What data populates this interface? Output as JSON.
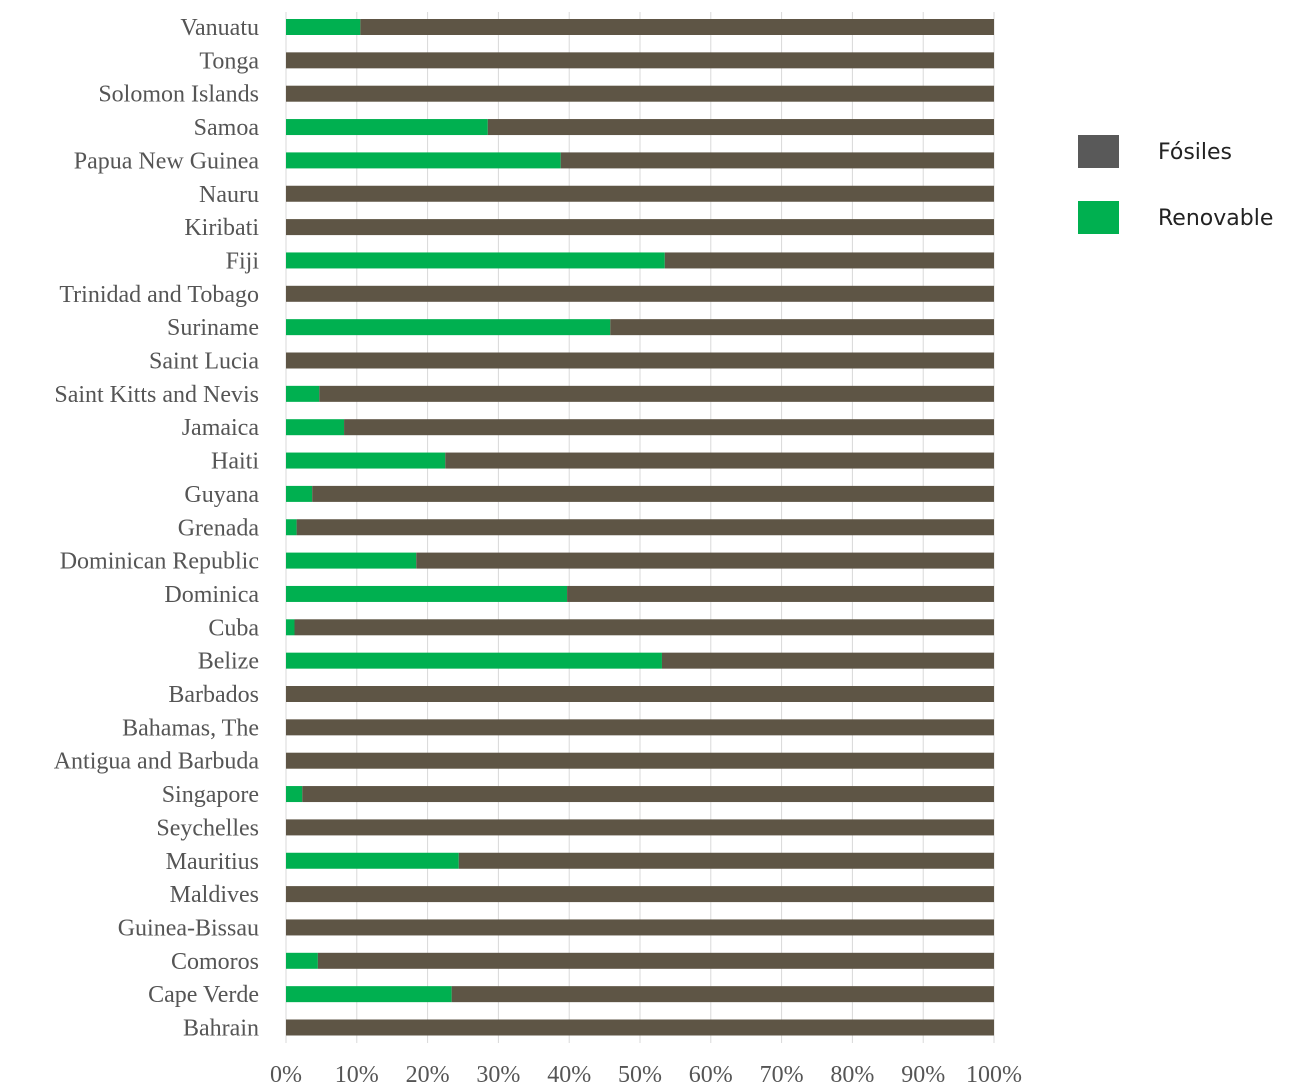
{
  "chart_data": {
    "type": "bar",
    "orientation": "horizontal",
    "stacked": true,
    "normalized": true,
    "categories": [
      "Vanuatu",
      "Tonga",
      "Solomon Islands",
      "Samoa",
      "Papua New Guinea",
      "Nauru",
      "Kiribati",
      "Fiji",
      "Trinidad and Tobago",
      "Suriname",
      "Saint Lucia",
      "Saint Kitts and Nevis",
      "Jamaica",
      "Haiti",
      "Guyana",
      "Grenada",
      "Dominican Republic",
      "Dominica",
      "Cuba",
      "Belize",
      "Barbados",
      "Bahamas, The",
      "Antigua and Barbuda",
      "Singapore",
      "Seychelles",
      "Mauritius",
      "Maldives",
      "Guinea-Bissau",
      "Comoros",
      "Cape Verde",
      "Bahrain"
    ],
    "series": [
      {
        "name": "Renovable",
        "color": "#00b050",
        "values": [
          10.5,
          0,
          0,
          28.5,
          38.8,
          0,
          0,
          53.5,
          0,
          45.8,
          0,
          4.7,
          8.2,
          22.5,
          3.7,
          1.5,
          18.4,
          39.7,
          1.2,
          53.1,
          0,
          0,
          0,
          2.3,
          0,
          24.4,
          0,
          0,
          4.5,
          23.4,
          0
        ]
      },
      {
        "name": "Fósiles",
        "color": "#5e5545",
        "legend_color": "#595959",
        "values": [
          89.5,
          100,
          100,
          71.5,
          61.2,
          100,
          100,
          46.5,
          100,
          54.2,
          100,
          95.3,
          91.8,
          77.5,
          96.3,
          98.5,
          81.6,
          60.3,
          98.8,
          46.9,
          100,
          100,
          100,
          97.7,
          100,
          75.6,
          100,
          100,
          95.5,
          76.6,
          100
        ]
      }
    ],
    "x_ticks": [
      "0%",
      "10%",
      "20%",
      "30%",
      "40%",
      "50%",
      "60%",
      "70%",
      "80%",
      "90%",
      "100%"
    ],
    "xlim": [
      0,
      100
    ],
    "grid": true,
    "legend": {
      "placement": "right",
      "items": [
        {
          "label": "Fósiles",
          "color": "#595959"
        },
        {
          "label": "Renovable",
          "color": "#00b050"
        }
      ]
    }
  }
}
